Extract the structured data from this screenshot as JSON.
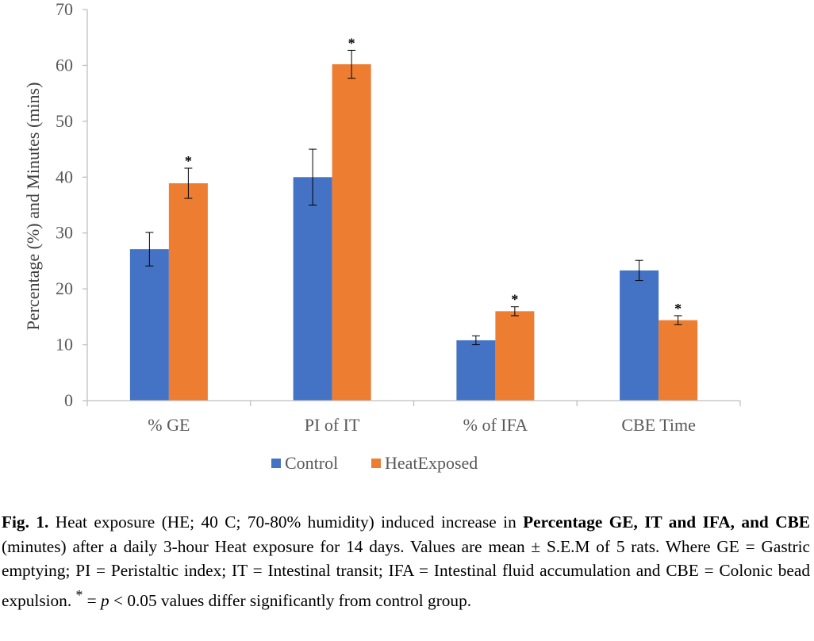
{
  "chart_data": {
    "type": "bar",
    "title": "",
    "xlabel": "",
    "ylabel": "Percentage (%) and Minutes (mins)",
    "ylim": [
      0,
      70
    ],
    "yticks": [
      0,
      10,
      20,
      30,
      40,
      50,
      60,
      70
    ],
    "grid": false,
    "legend_position": "bottom",
    "categories": [
      "% GE",
      "PI of IT",
      "% of IFA",
      "CBE Time"
    ],
    "series": [
      {
        "name": "Control",
        "color": "#4472C4",
        "values": [
          27.1,
          40.0,
          10.8,
          23.3
        ],
        "error": [
          3.0,
          5.0,
          0.8,
          1.8
        ],
        "significance": [
          "",
          "",
          "",
          ""
        ]
      },
      {
        "name": "HeatExposed",
        "color": "#ED7D31",
        "values": [
          38.9,
          60.2,
          16.0,
          14.4
        ],
        "error": [
          2.7,
          2.5,
          0.8,
          0.8
        ],
        "significance": [
          "*",
          "*",
          "*",
          "*"
        ]
      }
    ]
  },
  "caption": {
    "fig_label": "Fig. 1.",
    "part1": " Heat exposure (HE; 40 C; 70-80% humidity) induced increase in ",
    "bold1": "Percentage GE, IT and IFA, and CBE",
    "part2": " (minutes) after a daily 3-hour Heat exposure for 14 days. Values are mean ± S.E.M of 5 rats. Where GE = Gastric emptying; PI = Peristaltic index; IT = Intestinal transit; IFA = Intestinal fluid accumulation and CBE = Colonic bead expulsion. ",
    "sup": "*",
    "part3": " = ",
    "p_symbol": "p",
    "part4": " < 0.05 values differ significantly from control group."
  }
}
